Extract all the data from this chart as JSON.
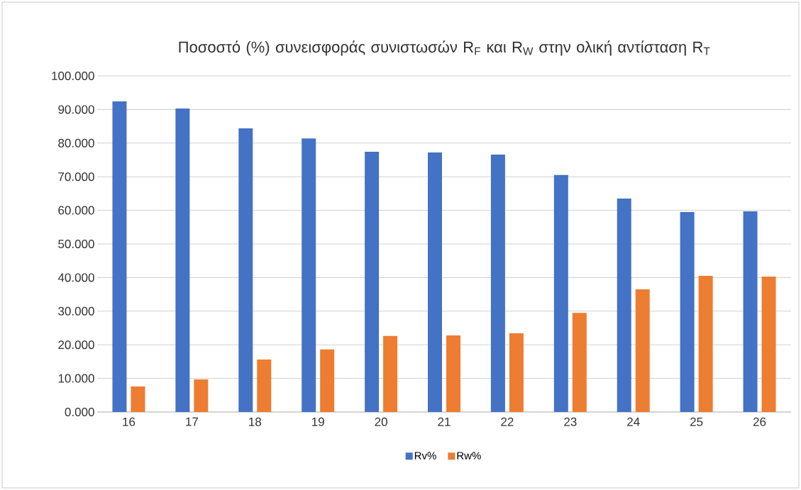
{
  "chart_data": {
    "type": "bar",
    "title": "Ποσοστό (%) συνεισφοράς συνιστωσών R$_{F}$ και R$_{W}$ στην ολική αντίσταση R$_{T}$",
    "categories": [
      "16",
      "17",
      "18",
      "19",
      "20",
      "21",
      "22",
      "23",
      "24",
      "25",
      "26"
    ],
    "series": [
      {
        "name": "Rv%",
        "color": "#4472c4",
        "values": [
          92.4,
          90.3,
          84.4,
          81.4,
          77.4,
          77.2,
          76.6,
          70.5,
          63.5,
          59.5,
          59.7
        ]
      },
      {
        "name": "Rw%",
        "color": "#ed7d31",
        "values": [
          7.6,
          9.7,
          15.6,
          18.6,
          22.6,
          22.8,
          23.4,
          29.5,
          36.5,
          40.5,
          40.3
        ]
      }
    ],
    "ylim": [
      0,
      100
    ],
    "yticks": [
      {
        "value": 0,
        "label": "0.000"
      },
      {
        "value": 10,
        "label": "10.000"
      },
      {
        "value": 20,
        "label": "20.000"
      },
      {
        "value": 30,
        "label": "30.000"
      },
      {
        "value": 40,
        "label": "40.000"
      },
      {
        "value": 50,
        "label": "50.000"
      },
      {
        "value": 60,
        "label": "60.000"
      },
      {
        "value": 70,
        "label": "70.000"
      },
      {
        "value": 80,
        "label": "80.000"
      },
      {
        "value": 90,
        "label": "90.000"
      },
      {
        "value": 100,
        "label": "100.000"
      }
    ],
    "grid": "y",
    "legend": "bottom"
  }
}
